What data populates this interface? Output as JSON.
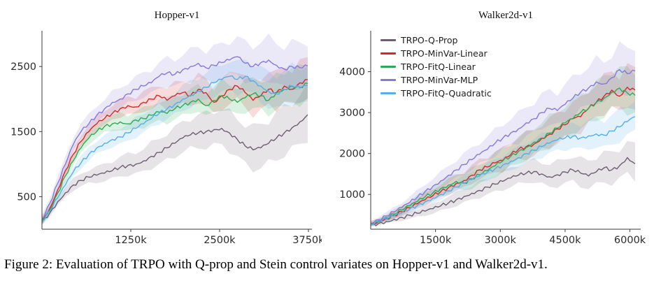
{
  "caption": {
    "label": "Figure 2:",
    "text": "Evaluation of TRPO with Q-prop and Stein control variates on Hopper-v1 and Walker2d-v1."
  },
  "chart_data": [
    {
      "type": "line",
      "title": "Hopper-v1",
      "xlabel": "",
      "ylabel": "",
      "grid": false,
      "legend": false,
      "xlim": [
        0,
        3800
      ],
      "ylim": [
        0,
        3050
      ],
      "xticks": {
        "values": [
          1250,
          2500,
          3750
        ],
        "labels": [
          "1250k",
          "2500k",
          "3750k"
        ]
      },
      "yticks": {
        "values": [
          500,
          1500,
          2500
        ],
        "labels": [
          "500",
          "1500",
          "2500"
        ]
      },
      "x": [
        0,
        110,
        220,
        330,
        440,
        550,
        660,
        770,
        880,
        990,
        1100,
        1210,
        1320,
        1430,
        1540,
        1650,
        1760,
        1870,
        1980,
        2090,
        2200,
        2310,
        2420,
        2530,
        2640,
        2750,
        2860,
        2970,
        3080,
        3190,
        3300,
        3410,
        3520,
        3630,
        3740
      ],
      "series": [
        {
          "name": "TRPO-Q-Prop",
          "color": "#6e5d73",
          "band": [
            50,
            420
          ],
          "values": [
            110,
            250,
            420,
            560,
            680,
            750,
            800,
            830,
            860,
            900,
            950,
            980,
            1000,
            1050,
            1120,
            1180,
            1250,
            1320,
            1400,
            1450,
            1480,
            1500,
            1530,
            1550,
            1480,
            1380,
            1280,
            1220,
            1250,
            1320,
            1400,
            1480,
            1560,
            1650,
            1760
          ]
        },
        {
          "name": "TRPO-MinVar-Linear",
          "color": "#d62728",
          "band": [
            60,
            320
          ],
          "values": [
            130,
            320,
            600,
            900,
            1150,
            1350,
            1500,
            1620,
            1700,
            1780,
            1850,
            1900,
            1880,
            1950,
            2000,
            2050,
            1980,
            2050,
            2100,
            2050,
            2150,
            2100,
            1950,
            2050,
            2150,
            2200,
            2100,
            1980,
            2050,
            2150,
            2100,
            2200,
            2150,
            2250,
            2300
          ]
        },
        {
          "name": "TRPO-FitQ-Linear",
          "color": "#2bab54",
          "band": [
            60,
            300
          ],
          "values": [
            130,
            300,
            550,
            820,
            1050,
            1250,
            1400,
            1500,
            1580,
            1620,
            1650,
            1620,
            1680,
            1700,
            1750,
            1800,
            1780,
            1850,
            1900,
            1950,
            2000,
            1900,
            1980,
            2050,
            2000,
            1950,
            2020,
            2080,
            2050,
            1980,
            2100,
            2150,
            2200,
            2180,
            2240
          ]
        },
        {
          "name": "TRPO-MinVar-MLP",
          "color": "#8878d8",
          "band": [
            80,
            380
          ],
          "values": [
            150,
            400,
            700,
            1000,
            1300,
            1500,
            1620,
            1750,
            1850,
            1950,
            2000,
            2080,
            2150,
            2200,
            2250,
            2350,
            2400,
            2380,
            2450,
            2500,
            2550,
            2480,
            2520,
            2560,
            2600,
            2650,
            2550,
            2500,
            2560,
            2600,
            2520,
            2460,
            2500,
            2480,
            2510
          ]
        },
        {
          "name": "TRPO-FitQ-Quadratic",
          "color": "#56aee8",
          "band": [
            60,
            320
          ],
          "values": [
            120,
            280,
            480,
            680,
            880,
            1020,
            1150,
            1250,
            1320,
            1380,
            1420,
            1480,
            1550,
            1620,
            1700,
            1780,
            1850,
            1920,
            2000,
            2060,
            2120,
            2180,
            2250,
            2300,
            2350,
            2300,
            2350,
            2280,
            2200,
            2120,
            2080,
            2150,
            2200,
            2170,
            2210
          ]
        }
      ]
    },
    {
      "type": "line",
      "title": "Walker2d-v1",
      "xlabel": "",
      "ylabel": "",
      "grid": false,
      "legend": true,
      "legend_position": "upper-left",
      "xlim": [
        0,
        6250
      ],
      "ylim": [
        150,
        5000
      ],
      "xticks": {
        "values": [
          1500,
          3000,
          4500,
          6000
        ],
        "labels": [
          "1500k",
          "3000k",
          "4500k",
          "6000k"
        ]
      },
      "yticks": {
        "values": [
          1000,
          2000,
          3000,
          4000
        ],
        "labels": [
          "1000",
          "2000",
          "3000",
          "4000"
        ]
      },
      "x": [
        0,
        180,
        360,
        540,
        720,
        900,
        1080,
        1260,
        1440,
        1620,
        1800,
        1980,
        2160,
        2340,
        2520,
        2700,
        2880,
        3060,
        3240,
        3420,
        3600,
        3780,
        3960,
        4140,
        4320,
        4500,
        4680,
        4860,
        5040,
        5220,
        5400,
        5580,
        5760,
        5940,
        6120
      ],
      "series": [
        {
          "name": "TRPO-Q-Prop",
          "color": "#6e5d73",
          "band": [
            40,
            430
          ],
          "values": [
            250,
            290,
            340,
            390,
            440,
            490,
            540,
            590,
            650,
            720,
            790,
            870,
            950,
            1030,
            1100,
            1180,
            1250,
            1320,
            1400,
            1470,
            1520,
            1560,
            1500,
            1430,
            1480,
            1550,
            1600,
            1520,
            1450,
            1550,
            1650,
            1600,
            1700,
            1900,
            1750
          ]
        },
        {
          "name": "TRPO-MinVar-Linear",
          "color": "#d62728",
          "band": [
            50,
            520
          ],
          "values": [
            280,
            340,
            410,
            490,
            580,
            670,
            770,
            870,
            970,
            1070,
            1170,
            1270,
            1340,
            1470,
            1600,
            1670,
            1770,
            1830,
            1970,
            2100,
            2170,
            2230,
            2370,
            2470,
            2600,
            2700,
            2850,
            2900,
            3100,
            3250,
            3400,
            3550,
            3400,
            3620,
            3550
          ]
        },
        {
          "name": "TRPO-FitQ-Linear",
          "color": "#2bab54",
          "band": [
            50,
            560
          ],
          "values": [
            280,
            350,
            430,
            520,
            620,
            720,
            830,
            940,
            1040,
            1140,
            1230,
            1320,
            1280,
            1380,
            1480,
            1580,
            1700,
            1820,
            1930,
            2050,
            2150,
            2280,
            2380,
            2500,
            2620,
            2750,
            2850,
            3000,
            3100,
            3250,
            3350,
            3500,
            3600,
            3480,
            3420
          ]
        },
        {
          "name": "TRPO-MinVar-MLP",
          "color": "#8878d8",
          "band": [
            60,
            620
          ],
          "values": [
            300,
            380,
            470,
            570,
            680,
            800,
            930,
            1070,
            1200,
            1330,
            1470,
            1600,
            1730,
            1850,
            1980,
            2100,
            2250,
            2380,
            2500,
            2600,
            2750,
            2850,
            3000,
            3100,
            3050,
            3200,
            3350,
            3500,
            3600,
            3750,
            3700,
            3850,
            4050,
            3950,
            4020
          ]
        },
        {
          "name": "TRPO-FitQ-Quadratic",
          "color": "#56aee8",
          "band": [
            40,
            420
          ],
          "values": [
            270,
            330,
            400,
            470,
            550,
            640,
            730,
            820,
            910,
            1000,
            1090,
            1180,
            1270,
            1360,
            1450,
            1540,
            1630,
            1720,
            1810,
            1900,
            2000,
            2080,
            2170,
            2250,
            2330,
            2380,
            2420,
            2380,
            2430,
            2480,
            2450,
            2550,
            2650,
            2780,
            2900
          ]
        }
      ]
    }
  ]
}
